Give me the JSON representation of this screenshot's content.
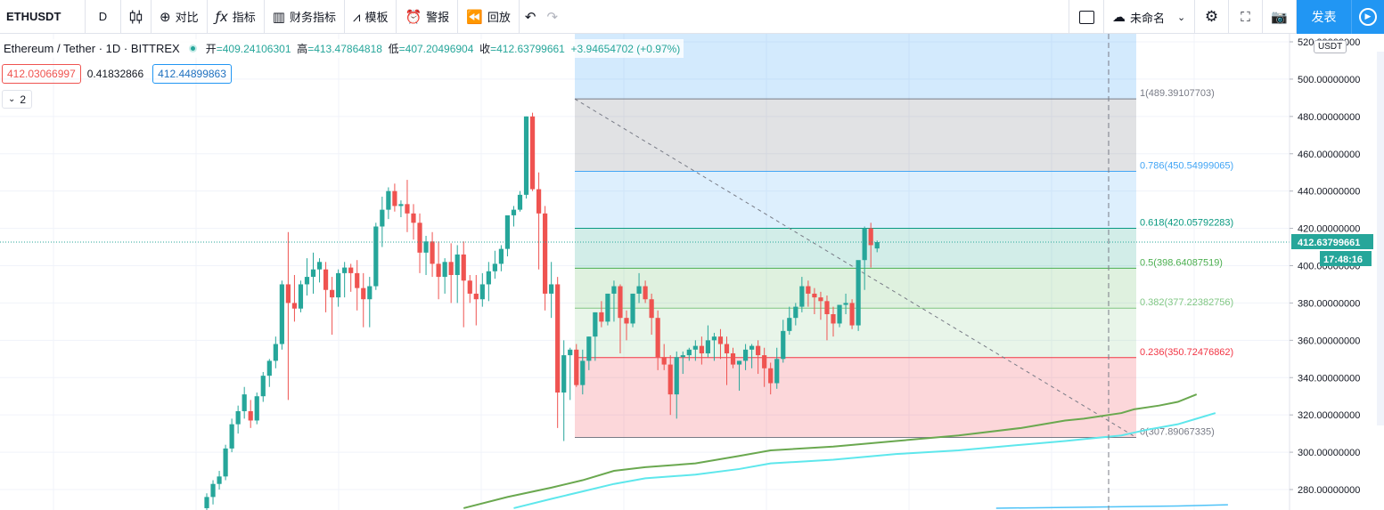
{
  "toolbar": {
    "symbol": "ETHUSDT",
    "interval": "D",
    "compare": "对比",
    "indicators": "指标",
    "financials": "财务指标",
    "templates": "模板",
    "alert": "警报",
    "replay": "回放",
    "layout_name": "未命名",
    "publish": "发表"
  },
  "legend": {
    "title": "Ethereum / Tether · 1D · BITTREX",
    "open_label": "开",
    "open": "409.24106301",
    "high_label": "高",
    "high": "413.47864818",
    "low_label": "低",
    "low": "407.20496904",
    "close_label": "收",
    "close": "412.63799661",
    "change": "+3.94654702 (+0.97%)",
    "bid": "412.03066997",
    "spread": "0.41832866",
    "ask": "412.44899863",
    "collapse_count": "2"
  },
  "axis": {
    "currency": "USDT",
    "last_price": "412.63799661",
    "countdown": "17:48:16"
  },
  "colors": {
    "up": "#26a69a",
    "down": "#ef5350",
    "accent": "#2196f3",
    "ma_green": "#6aa84f",
    "ma_cyan": "#5ee7ec"
  },
  "chart_data": {
    "type": "candlestick",
    "ylim": [
      270,
      525
    ],
    "y_ticks": [
      "520.00000000",
      "500.00000000",
      "480.00000000",
      "460.00000000",
      "440.00000000",
      "420.00000000",
      "400.00000000",
      "380.00000000",
      "360.00000000",
      "340.00000000",
      "320.00000000",
      "300.00000000",
      "280.00000000"
    ],
    "y_tick_values": [
      520,
      500,
      480,
      460,
      440,
      420,
      400,
      380,
      360,
      340,
      320,
      300,
      280
    ],
    "fib_levels": [
      {
        "ratio": "1",
        "value": 489.39107703,
        "label": "1(489.39107703)",
        "color": "#787b86"
      },
      {
        "ratio": "0.786",
        "value": 450.54999065,
        "label": "0.786(450.54999065)",
        "color": "#42a5f5"
      },
      {
        "ratio": "0.618",
        "value": 420.05792283,
        "label": "0.618(420.05792283)",
        "color": "#089981"
      },
      {
        "ratio": "0.5",
        "value": 398.64087519,
        "label": "0.5(398.64087519)",
        "color": "#4caf50"
      },
      {
        "ratio": "0.382",
        "value": 377.22382756,
        "label": "0.382(377.22382756)",
        "color": "#81c784"
      },
      {
        "ratio": "0.236",
        "value": 350.72476862,
        "label": "0.236(350.72476862)",
        "color": "#f23645"
      },
      {
        "ratio": "0",
        "value": 307.89067335,
        "label": "0(307.89067335)",
        "color": "#787b86"
      }
    ],
    "candles": [
      [
        270,
        278,
        265,
        276
      ],
      [
        276,
        285,
        272,
        283
      ],
      [
        283,
        290,
        280,
        287
      ],
      [
        287,
        304,
        285,
        302
      ],
      [
        302,
        318,
        300,
        315
      ],
      [
        315,
        325,
        310,
        322
      ],
      [
        322,
        335,
        318,
        331
      ],
      [
        322,
        328,
        313,
        317
      ],
      [
        317,
        332,
        315,
        330
      ],
      [
        330,
        343,
        327,
        341
      ],
      [
        341,
        350,
        335,
        349
      ],
      [
        349,
        362,
        345,
        358
      ],
      [
        358,
        392,
        355,
        390
      ],
      [
        390,
        418,
        328,
        380
      ],
      [
        380,
        395,
        370,
        377
      ],
      [
        377,
        392,
        375,
        390
      ],
      [
        390,
        404,
        384,
        394
      ],
      [
        394,
        407,
        385,
        398
      ],
      [
        398,
        404,
        391,
        402
      ],
      [
        398,
        402,
        375,
        387
      ],
      [
        387,
        394,
        363,
        383
      ],
      [
        383,
        398,
        378,
        396
      ],
      [
        396,
        402,
        383,
        399
      ],
      [
        399,
        401,
        386,
        396
      ],
      [
        396,
        403,
        376,
        388
      ],
      [
        388,
        396,
        367,
        382
      ],
      [
        382,
        394,
        367,
        389
      ],
      [
        389,
        423,
        387,
        421
      ],
      [
        421,
        437,
        410,
        430
      ],
      [
        430,
        442,
        425,
        440
      ],
      [
        440,
        444,
        429,
        432
      ],
      [
        432,
        435,
        426,
        433
      ],
      [
        433,
        446,
        418,
        428
      ],
      [
        428,
        433,
        414,
        423
      ],
      [
        423,
        428,
        396,
        407
      ],
      [
        407,
        416,
        395,
        413
      ],
      [
        413,
        418,
        394,
        401
      ],
      [
        401,
        413,
        382,
        394
      ],
      [
        394,
        404,
        385,
        402
      ],
      [
        402,
        412,
        380,
        395
      ],
      [
        395,
        411,
        380,
        406
      ],
      [
        406,
        413,
        367,
        392
      ],
      [
        392,
        395,
        380,
        385
      ],
      [
        385,
        395,
        368,
        382
      ],
      [
        382,
        396,
        378,
        390
      ],
      [
        390,
        402,
        381,
        397
      ],
      [
        397,
        408,
        393,
        401
      ],
      [
        401,
        411,
        397,
        409
      ],
      [
        409,
        426,
        405,
        427
      ],
      [
        427,
        432,
        421,
        430
      ],
      [
        430,
        440,
        429,
        438
      ],
      [
        438,
        480,
        436,
        480
      ],
      [
        480,
        482,
        440,
        441
      ],
      [
        441,
        450,
        398,
        428
      ],
      [
        428,
        432,
        376,
        385
      ],
      [
        385,
        402,
        372,
        390
      ],
      [
        390,
        394,
        313,
        332
      ],
      [
        332,
        360,
        306,
        352
      ],
      [
        352,
        356,
        328,
        355
      ],
      [
        355,
        358,
        335,
        336
      ],
      [
        336,
        355,
        331,
        349
      ],
      [
        349,
        362,
        344,
        362
      ],
      [
        362,
        375,
        349,
        375
      ],
      [
        375,
        381,
        367,
        370
      ],
      [
        370,
        385,
        368,
        385
      ],
      [
        385,
        392,
        370,
        389
      ],
      [
        389,
        390,
        353,
        372
      ],
      [
        372,
        376,
        360,
        369
      ],
      [
        369,
        385,
        367,
        385
      ],
      [
        385,
        396,
        380,
        389
      ],
      [
        389,
        392,
        380,
        382
      ],
      [
        382,
        385,
        363,
        372
      ],
      [
        372,
        376,
        344,
        351
      ],
      [
        351,
        358,
        344,
        347
      ],
      [
        347,
        352,
        320,
        331
      ],
      [
        331,
        354,
        318,
        351
      ],
      [
        351,
        354,
        342,
        352
      ],
      [
        352,
        356,
        349,
        355
      ],
      [
        355,
        360,
        349,
        357
      ],
      [
        357,
        362,
        347,
        353
      ],
      [
        353,
        368,
        351,
        360
      ],
      [
        360,
        364,
        349,
        362
      ],
      [
        362,
        366,
        350,
        358
      ],
      [
        358,
        362,
        336,
        353
      ],
      [
        353,
        356,
        345,
        347
      ],
      [
        347,
        349,
        333,
        349
      ],
      [
        349,
        358,
        344,
        355
      ],
      [
        355,
        358,
        345,
        357
      ],
      [
        357,
        360,
        342,
        352
      ],
      [
        352,
        356,
        335,
        345
      ],
      [
        345,
        348,
        331,
        337
      ],
      [
        337,
        356,
        334,
        350
      ],
      [
        350,
        371,
        348,
        365
      ],
      [
        365,
        378,
        363,
        372
      ],
      [
        372,
        380,
        368,
        378
      ],
      [
        378,
        394,
        375,
        389
      ],
      [
        389,
        392,
        378,
        385
      ],
      [
        385,
        388,
        374,
        383
      ],
      [
        383,
        386,
        371,
        381
      ],
      [
        381,
        384,
        360,
        374
      ],
      [
        374,
        378,
        362,
        369
      ],
      [
        369,
        378,
        367,
        379
      ],
      [
        379,
        385,
        374,
        380
      ],
      [
        380,
        382,
        366,
        368
      ],
      [
        368,
        402,
        365,
        403
      ],
      [
        403,
        421,
        387,
        420
      ],
      [
        420,
        423,
        399,
        411
      ],
      [
        409.24,
        413.48,
        407.2,
        412.64
      ]
    ],
    "x_start": 232,
    "x_step": 7.03
  }
}
